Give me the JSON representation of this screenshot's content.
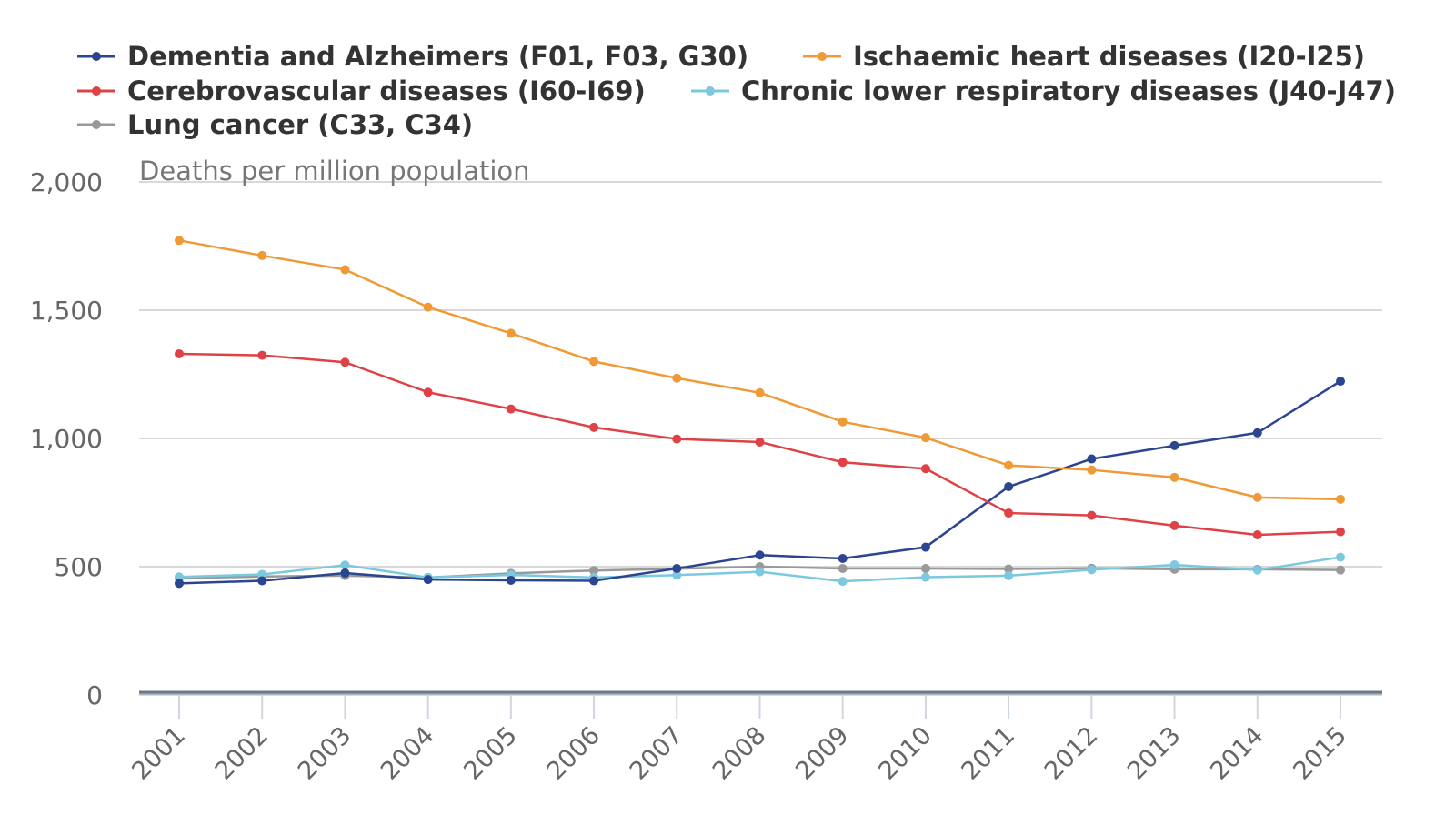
{
  "chart_data": {
    "type": "line",
    "ylabel": "Deaths per million population",
    "xlabel": "",
    "x": [
      "2001",
      "2002",
      "2003",
      "2004",
      "2005",
      "2006",
      "2007",
      "2008",
      "2009",
      "2010",
      "2011",
      "2012",
      "2013",
      "2014",
      "2015"
    ],
    "ylim": [
      0,
      2000
    ],
    "yticks": [
      0,
      500,
      1000,
      1500,
      2000
    ],
    "ytick_labels": [
      "0",
      "500",
      "1,000",
      "1,500",
      "2,000"
    ],
    "grid": "horizontal",
    "legend_position": "top",
    "series": [
      {
        "name": "Dementia and Alzheimers (F01, F03, G30)",
        "color": "#2b4590",
        "values": [
          435,
          445,
          475,
          450,
          447,
          445,
          493,
          545,
          532,
          576,
          812,
          920,
          972,
          1022,
          1223
        ]
      },
      {
        "name": "Ischaemic heart diseases (I20-I25)",
        "color": "#ef9a36",
        "values": [
          1772,
          1713,
          1658,
          1512,
          1410,
          1300,
          1235,
          1178,
          1065,
          1003,
          895,
          877,
          848,
          770,
          763
        ]
      },
      {
        "name": "Cerebrovascular diseases (I60-I69)",
        "color": "#de4246",
        "values": [
          1330,
          1324,
          1297,
          1180,
          1115,
          1043,
          998,
          986,
          907,
          882,
          709,
          700,
          660,
          624,
          636
        ]
      },
      {
        "name": "Chronic lower respiratory diseases (J40-J47)",
        "color": "#7cc8df",
        "values": [
          460,
          470,
          506,
          458,
          468,
          458,
          467,
          480,
          443,
          459,
          465,
          488,
          507,
          487,
          537
        ]
      },
      {
        "name": "Lung cancer (C33, C34)",
        "color": "#999999",
        "values": [
          455,
          462,
          465,
          458,
          474,
          485,
          492,
          500,
          493,
          493,
          491,
          494,
          490,
          490,
          487
        ]
      }
    ]
  }
}
